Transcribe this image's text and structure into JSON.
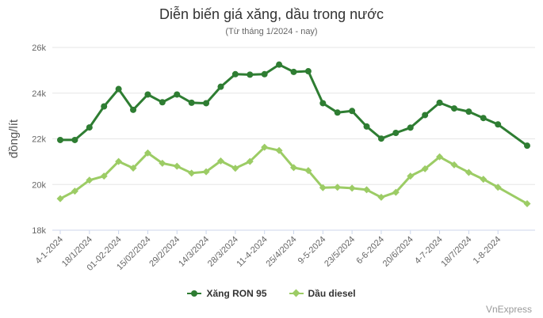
{
  "chart_data": {
    "type": "line",
    "title": "Diễn biến giá xăng, dầu trong nước",
    "subtitle": "(Từ tháng 1/2024 - nay)",
    "ylabel": "đồng/lít",
    "xlabel": "",
    "ylim": [
      18000,
      26000
    ],
    "yticks": [
      18000,
      20000,
      22000,
      24000,
      26000
    ],
    "ytick_labels": [
      "18k",
      "20k",
      "22k",
      "24k",
      "26k"
    ],
    "grid": true,
    "legend_position": "bottom",
    "x": [
      "4-1-2024",
      "11-1-2024",
      "18/1/2024",
      "25/1/2024",
      "01-02-2024",
      "8/2/2024",
      "15/02/2024",
      "22/2/2024",
      "29/2/2024",
      "7/3/2024",
      "14/3/2024",
      "21/3/2024",
      "28/3/2024",
      "4/4/2024",
      "11-4-2024",
      "18/4/2024",
      "25/4/2024",
      "2/5/2024",
      "9-5-2024",
      "16/5/2024",
      "23/5/2024",
      "30/5/2024",
      "6-6-2024",
      "13/6/2024",
      "20/6/2024",
      "27/6/2024",
      "4-7-2024",
      "11/7/2024",
      "18/7/2024",
      "25/7/2024",
      "1-8-2024",
      "8/8/2024",
      "15/8/2024"
    ],
    "x_tick_labels_shown": [
      "4-1-2024",
      "18/1/2024",
      "01-02-2024",
      "15/02/2024",
      "29/2/2024",
      "14/3/2024",
      "28/3/2024",
      "11-4-2024",
      "25/4/2024",
      "9-5-2024",
      "23/5/2024",
      "6-6-2024",
      "20/6/2024",
      "4-7-2024",
      "18/7/2024",
      "1-8-2024"
    ],
    "series": [
      {
        "name": "Xăng RON 95",
        "color": "#2e7d32",
        "marker": "circle",
        "values": [
          21950,
          21950,
          22500,
          23420,
          24180,
          23270,
          23940,
          23600,
          23940,
          23580,
          23560,
          24280,
          24830,
          24810,
          24830,
          25250,
          24930,
          24960,
          23560,
          23150,
          23220,
          22540,
          22010,
          22260,
          22490,
          23040,
          23580,
          23330,
          23190,
          22910,
          22630,
          null,
          21700
        ]
      },
      {
        "name": "Dầu diesel",
        "color": "#9ccc65",
        "marker": "diamond",
        "values": [
          19380,
          19710,
          20190,
          20370,
          21010,
          20720,
          21380,
          20930,
          20800,
          20500,
          20560,
          21030,
          20710,
          21010,
          21630,
          21490,
          20740,
          20610,
          19860,
          19880,
          19840,
          19770,
          19440,
          19660,
          20370,
          20690,
          21210,
          20860,
          20530,
          20230,
          19880,
          null,
          19160
        ]
      }
    ]
  },
  "credits": "VnExpress"
}
